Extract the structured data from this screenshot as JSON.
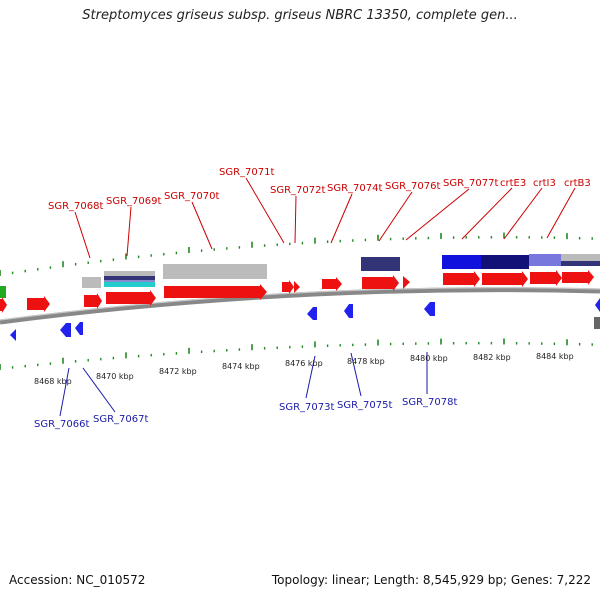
{
  "title": "Streptomyces griseus subsp. griseus NBRC 13350, complete gen...",
  "accession": "Accession: NC_010572",
  "summary": "Topology: linear; Length: 8,545,929 bp; Genes: 7,222",
  "colors": {
    "forward_gene": "#ee1111",
    "reverse_gene": "#2222ee",
    "forward_label": "#cc0000",
    "reverse_label": "#1a1aaa",
    "tick": "#228822",
    "backbone": "#888888",
    "feature_gray": "#bbbbbb",
    "feature_navy": "#333377",
    "feature_blue": "#1111dd",
    "feature_lavender": "#7777dd",
    "feature_cyan": "#22cccc",
    "feature_green": "#22aa22"
  },
  "scale_labels": [
    "8468 kbp",
    "8470 kbp",
    "8472 kbp",
    "8474 kbp",
    "8476 kbp",
    "8478 kbp",
    "8480 kbp",
    "8482 kbp",
    "8484 kbp"
  ],
  "forward_labels": [
    "SGR_7068t",
    "SGR_7069t",
    "SGR_7070t",
    "SGR_7071t",
    "SGR_7072t",
    "SGR_7074t",
    "SGR_7076t",
    "SGR_7077t",
    "crtE3",
    "crtI3",
    "crtB3"
  ],
  "reverse_labels": [
    "SGR_7066t",
    "SGR_7067t",
    "SGR_7073t",
    "SGR_7075t",
    "SGR_7078t"
  ]
}
